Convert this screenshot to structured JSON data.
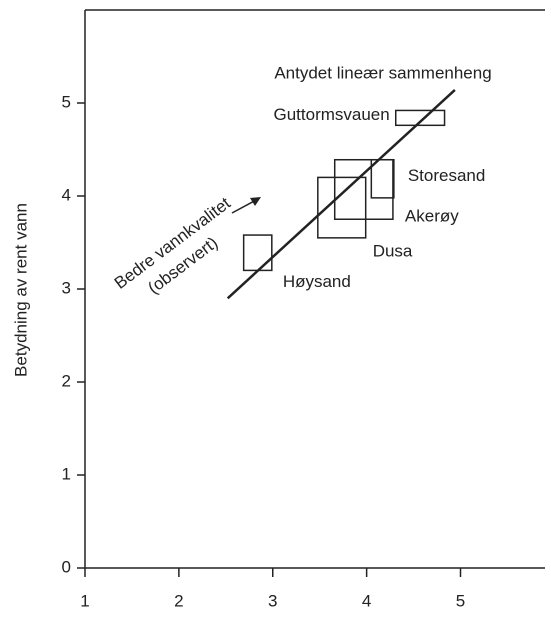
{
  "chart_data": {
    "type": "range-box",
    "ylabel": "Betydning av rent vann",
    "xlim": [
      1,
      5.9
    ],
    "ylim": [
      0,
      6
    ],
    "xticks": [
      1,
      2,
      3,
      4,
      5
    ],
    "yticks": [
      0,
      1,
      2,
      3,
      4,
      5
    ],
    "color": "#222222",
    "boxes": [
      {
        "name": "Guttormsvauen",
        "x": [
          4.31,
          4.83
        ],
        "y": [
          4.76,
          4.92
        ]
      },
      {
        "name": "Storesand",
        "x": [
          4.05,
          4.29
        ],
        "y": [
          3.98,
          4.39
        ]
      },
      {
        "name": "Akerøy",
        "x": [
          3.66,
          4.28
        ],
        "y": [
          3.75,
          4.39
        ]
      },
      {
        "name": "Dusa",
        "x": [
          3.48,
          3.99
        ],
        "y": [
          3.55,
          4.2
        ]
      },
      {
        "name": "Høysand",
        "x": [
          2.69,
          2.99
        ],
        "y": [
          3.2,
          3.58
        ]
      }
    ],
    "trend": {
      "label": "Antydet lineær sammenheng",
      "x": [
        2.52,
        4.94
      ],
      "y": [
        2.9,
        5.14
      ]
    },
    "annotation": [
      "Bedre vannkvalitet",
      "(observert)"
    ]
  }
}
